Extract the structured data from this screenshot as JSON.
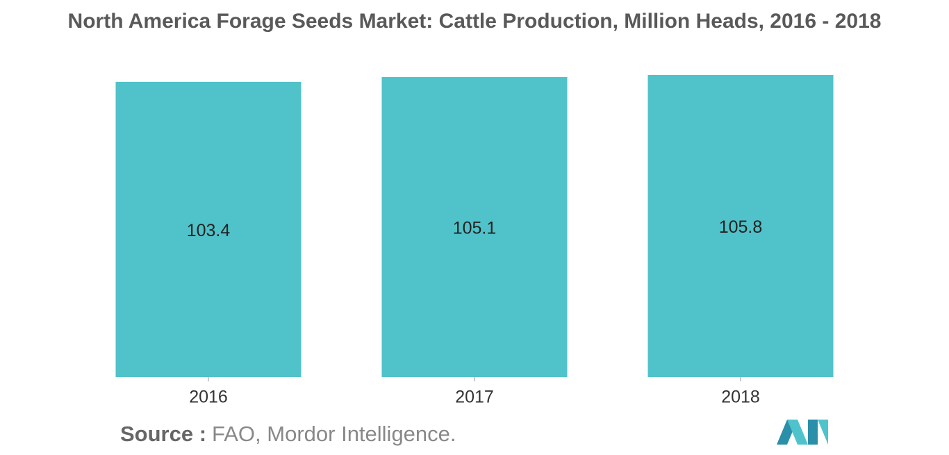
{
  "chart_data": {
    "type": "bar",
    "title": "North America Forage Seeds Market: Cattle Production, Million Heads, 2016 - 2018",
    "categories": [
      "2016",
      "2017",
      "2018"
    ],
    "values": [
      103.4,
      105.1,
      105.8
    ],
    "color": "#50c2c9"
  },
  "source_label": "Source :",
  "source": "FAO, Mordor Intelligence."
}
